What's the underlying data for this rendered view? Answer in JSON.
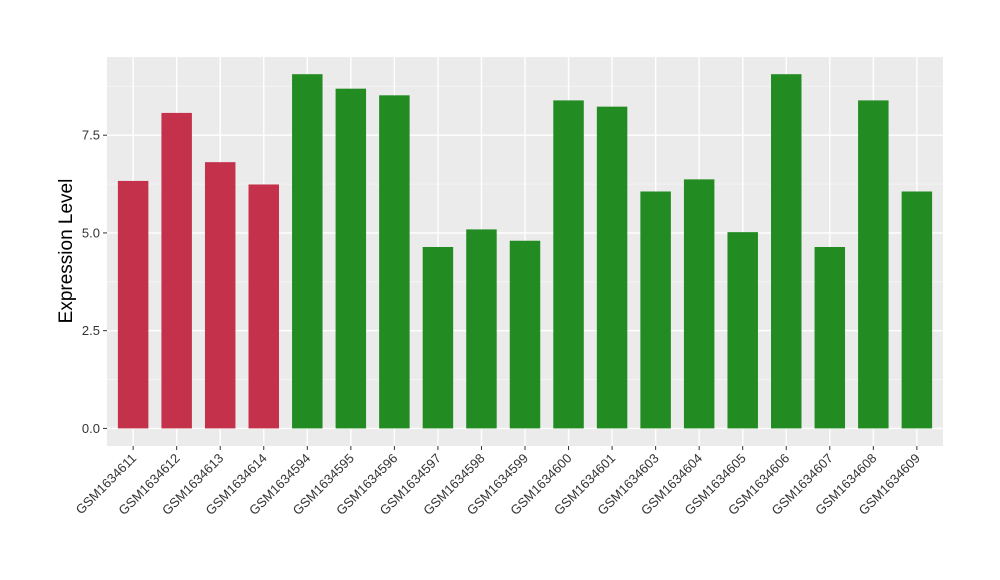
{
  "chart_data": {
    "type": "bar",
    "title": "",
    "xlabel": "",
    "ylabel": "Expression Level",
    "ylim": [
      -0.45,
      9.5
    ],
    "yticks": [
      0.0,
      2.5,
      5.0,
      7.5
    ],
    "ytick_labels": [
      "0.0",
      "2.5",
      "5.0",
      "7.5"
    ],
    "grid": true,
    "legend": "none",
    "colors": {
      "group_a": "#C4314B",
      "group_b": "#228B22",
      "panel": "#EBEBEB",
      "grid": "#FFFFFF"
    },
    "categories": [
      "GSM1634611",
      "GSM1634612",
      "GSM1634613",
      "GSM1634614",
      "GSM1634594",
      "GSM1634595",
      "GSM1634596",
      "GSM1634597",
      "GSM1634598",
      "GSM1634599",
      "GSM1634600",
      "GSM1634601",
      "GSM1634603",
      "GSM1634604",
      "GSM1634605",
      "GSM1634606",
      "GSM1634607",
      "GSM1634608",
      "GSM1634609"
    ],
    "values": [
      6.33,
      8.07,
      6.81,
      6.24,
      9.06,
      8.69,
      8.52,
      4.64,
      5.09,
      4.8,
      8.39,
      8.23,
      6.06,
      6.37,
      5.02,
      9.06,
      4.64,
      8.39,
      6.06
    ],
    "groups": [
      "a",
      "a",
      "a",
      "a",
      "b",
      "b",
      "b",
      "b",
      "b",
      "b",
      "b",
      "b",
      "b",
      "b",
      "b",
      "b",
      "b",
      "b",
      "b"
    ]
  }
}
